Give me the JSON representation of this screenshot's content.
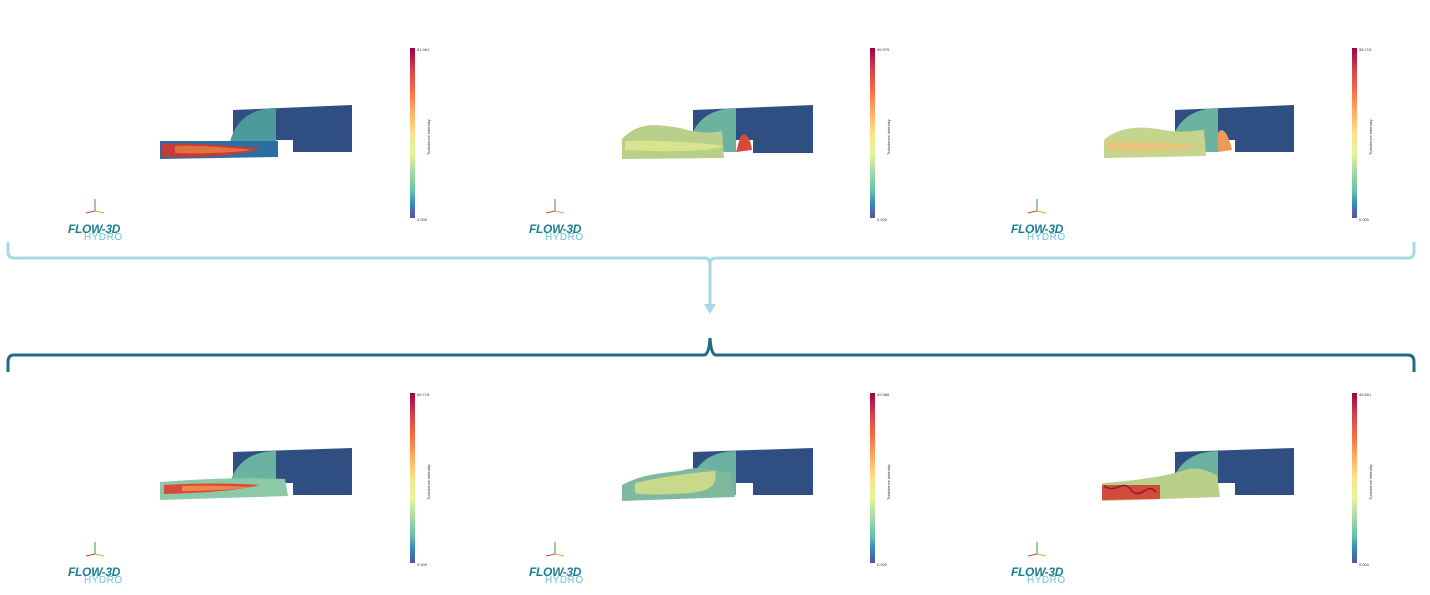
{
  "brand": {
    "logo_main": "FLOW-3D",
    "logo_sub": "HYDRO"
  },
  "panels": [
    {
      "id": "p1",
      "colorbar_title": "Turbulence intensity",
      "max": "81.061",
      "min": "0.000"
    },
    {
      "id": "p2",
      "colorbar_title": "Turbulence intensity",
      "max": "49.979",
      "min": "0.000"
    },
    {
      "id": "p3",
      "colorbar_title": "Turbulence intensity",
      "max": "58.715",
      "min": "0.000"
    },
    {
      "id": "p4",
      "colorbar_title": "Turbulence intensity",
      "max": "69.715",
      "min": "0.000"
    },
    {
      "id": "p5",
      "colorbar_title": "Turbulence intensity",
      "max": "49.986",
      "min": "0.000"
    },
    {
      "id": "p6",
      "colorbar_title": "Turbulence intensity",
      "max": "49.601",
      "min": "0.000"
    }
  ],
  "colors": {
    "brace_top": "#a8d8e6",
    "brace_bottom": "#1d6e86",
    "spillway": "#2f4f82",
    "logo": "#1a7f92"
  }
}
